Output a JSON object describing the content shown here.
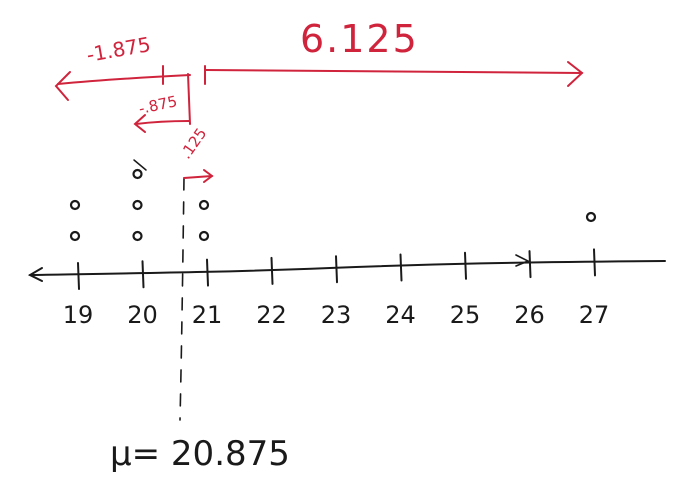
{
  "number_line": {
    "ticks": [
      "19",
      "20",
      "21",
      "22",
      "23",
      "24",
      "25",
      "26",
      "27"
    ],
    "tick_values": [
      19,
      20,
      21,
      22,
      23,
      24,
      25,
      26,
      27
    ]
  },
  "dot_plot": {
    "points": [
      19,
      19,
      20,
      20,
      20,
      21,
      21,
      27
    ]
  },
  "mean": {
    "label": "μ= 20.875",
    "value": 20.875
  },
  "deviations": {
    "neg_large": "-1.875",
    "neg_small": "-.875",
    "pos_small": ".125",
    "pos_large": "6.125"
  },
  "colors": {
    "ink": "#1a1a1a",
    "annotation": "#d0233c"
  }
}
